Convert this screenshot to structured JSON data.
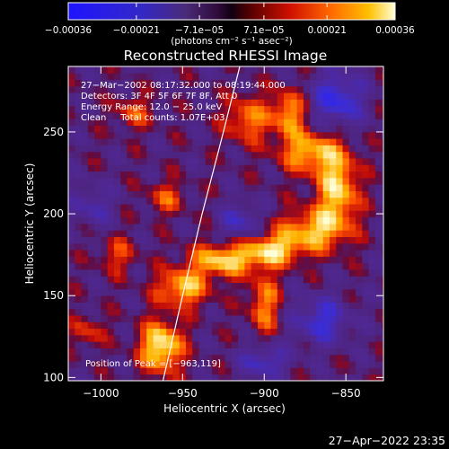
{
  "chart_data": {
    "type": "heatmap",
    "title": "Reconstructed RHESSI Image",
    "xlabel": "Heliocentric X (arcsec)",
    "ylabel": "Heliocentric Y (arcsec)",
    "xlim": [
      -1020,
      -827
    ],
    "ylim": [
      98,
      290
    ],
    "x_ticks": [
      -1000,
      -950,
      -900,
      -850
    ],
    "y_ticks": [
      100,
      150,
      200,
      250
    ],
    "x_tick_labels": [
      "−1000",
      "−950",
      "−900",
      "−850"
    ],
    "y_tick_labels": [
      "100",
      "150",
      "200",
      "250"
    ],
    "colorbar": {
      "min": -0.00036,
      "max": 0.00036,
      "tick_values": [
        -0.00036,
        -0.00021,
        -7.1e-05,
        7.1e-05,
        0.00021,
        0.00036
      ],
      "tick_labels": [
        "−0.00036",
        "−0.00021",
        "−7.1e−05",
        "7.1e−05",
        "0.00021",
        "0.00036"
      ],
      "units_label": "(photons cm⁻² s⁻¹ asec⁻²)"
    },
    "annotations": [
      "27−Mar−2002 08:17:32.000 to 08:19:44.000",
      "Detectors: 3F 4F 5F 6F 7F 8F, Att 0",
      "Energy Range: 12.0 − 25.0 keV",
      "Clean     Total counts: 1.07E+03"
    ],
    "peak_label": "Position of Peak = [−963,119]",
    "peak_position": [
      -963,
      119
    ],
    "limb_curve": [
      [
        -962,
        98
      ],
      [
        -950,
        150
      ],
      [
        -938,
        200
      ],
      [
        -925,
        250
      ],
      [
        -915,
        290
      ]
    ],
    "hot_regions": [
      {
        "x": -963,
        "y": 119,
        "sx": 9,
        "sy": 11,
        "a": 1.0
      },
      {
        "x": -950,
        "y": 155,
        "sx": 11,
        "sy": 8,
        "a": 0.8
      },
      {
        "x": -925,
        "y": 172,
        "sx": 14,
        "sy": 7,
        "a": 0.85
      },
      {
        "x": -895,
        "y": 178,
        "sx": 12,
        "sy": 7,
        "a": 0.8
      },
      {
        "x": -870,
        "y": 190,
        "sx": 14,
        "sy": 9,
        "a": 0.75
      },
      {
        "x": -855,
        "y": 215,
        "sx": 9,
        "sy": 16,
        "a": 0.85
      },
      {
        "x": -872,
        "y": 238,
        "sx": 13,
        "sy": 9,
        "a": 0.75
      },
      {
        "x": -885,
        "y": 262,
        "sx": 7,
        "sy": 10,
        "a": 0.7
      },
      {
        "x": -910,
        "y": 258,
        "sx": 10,
        "sy": 10,
        "a": 0.6
      },
      {
        "x": -900,
        "y": 145,
        "sx": 7,
        "sy": 13,
        "a": 0.6
      },
      {
        "x": -960,
        "y": 210,
        "sx": 8,
        "sy": 7,
        "a": 0.45
      },
      {
        "x": -990,
        "y": 175,
        "sx": 8,
        "sy": 8,
        "a": 0.4
      },
      {
        "x": -1008,
        "y": 128,
        "sx": 7,
        "sy": 7,
        "a": 0.4
      },
      {
        "x": -980,
        "y": 262,
        "sx": 8,
        "sy": 7,
        "a": 0.45
      }
    ],
    "cold_regions": [
      {
        "x": -855,
        "y": 270,
        "sx": 11,
        "sy": 12,
        "a": 0.7
      },
      {
        "x": -865,
        "y": 135,
        "sx": 12,
        "sy": 10,
        "a": 0.6
      },
      {
        "x": -915,
        "y": 195,
        "sx": 8,
        "sy": 8,
        "a": 0.5
      },
      {
        "x": -1005,
        "y": 205,
        "sx": 9,
        "sy": 9,
        "a": 0.4
      },
      {
        "x": -900,
        "y": 110,
        "sx": 10,
        "sy": 7,
        "a": 0.55
      }
    ]
  },
  "footer": {
    "timestamp": "27−Apr−2022 23:35"
  }
}
